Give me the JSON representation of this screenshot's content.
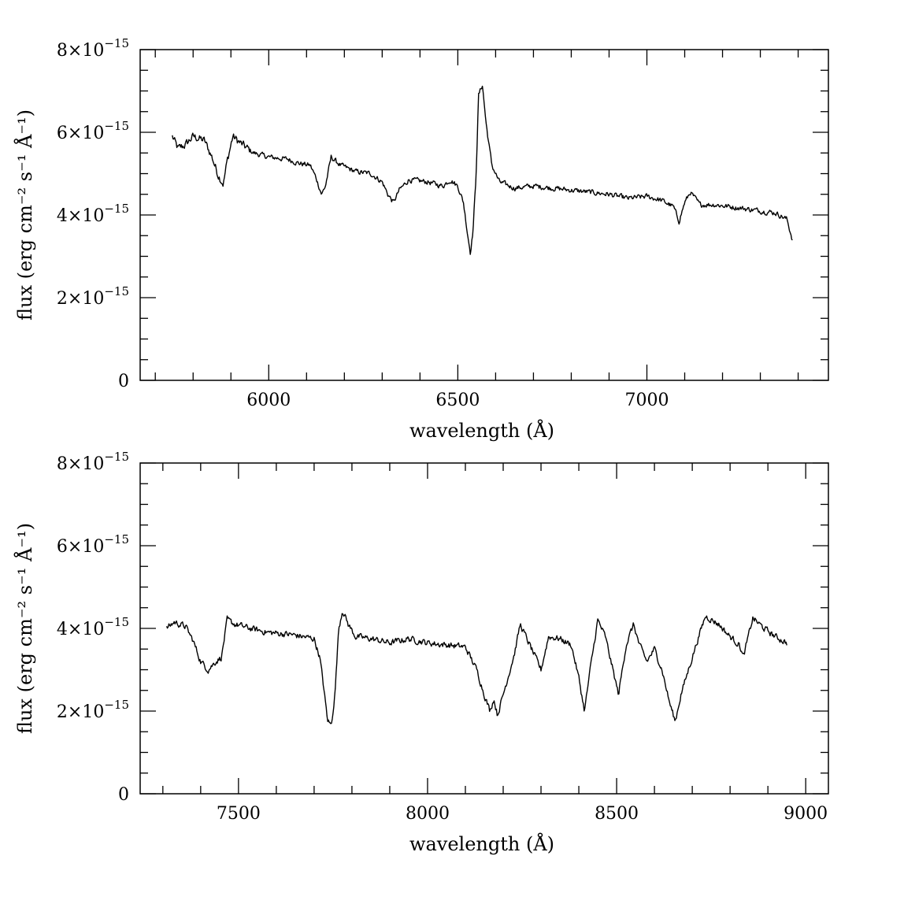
{
  "chart_data": [
    {
      "type": "line",
      "xlabel": "wavelength (Å)",
      "ylabel": "flux (erg cm⁻² s⁻¹ Å⁻¹)",
      "xlim": [
        5660,
        7480
      ],
      "ylim": [
        0,
        8e-15
      ],
      "x_major_ticks": [
        6000,
        6500,
        7000
      ],
      "x_major_tick_labels": [
        "6000",
        "6500",
        "7000"
      ],
      "x_minor_step": 100,
      "y_major_ticks": [
        0,
        2e-15,
        4e-15,
        6e-15,
        8e-15
      ],
      "y_tick_labels": [
        {
          "mantissa": "0",
          "exponent": ""
        },
        {
          "mantissa": "2×10",
          "exponent": "−15"
        },
        {
          "mantissa": "4×10",
          "exponent": "−15"
        },
        {
          "mantissa": "6×10",
          "exponent": "−15"
        },
        {
          "mantissa": "8×10",
          "exponent": "−15"
        }
      ],
      "y_minor_step": 5e-16,
      "grid": false,
      "legend": "none",
      "anchors": [
        [
          5745,
          5.9e-15
        ],
        [
          5760,
          5.6e-15
        ],
        [
          5780,
          5.7e-15
        ],
        [
          5800,
          5.9e-15
        ],
        [
          5830,
          5.8e-15
        ],
        [
          5850,
          5.4e-15
        ],
        [
          5865,
          5e-15
        ],
        [
          5880,
          4.75e-15
        ],
        [
          5890,
          5.3e-15
        ],
        [
          5905,
          5.9e-15
        ],
        [
          5930,
          5.7e-15
        ],
        [
          5960,
          5.5e-15
        ],
        [
          6000,
          5.4e-15
        ],
        [
          6050,
          5.35e-15
        ],
        [
          6080,
          5.25e-15
        ],
        [
          6110,
          5.2e-15
        ],
        [
          6125,
          4.9e-15
        ],
        [
          6140,
          4.5e-15
        ],
        [
          6150,
          4.7e-15
        ],
        [
          6165,
          5.4e-15
        ],
        [
          6190,
          5.2e-15
        ],
        [
          6230,
          5.05e-15
        ],
        [
          6270,
          5e-15
        ],
        [
          6300,
          4.8e-15
        ],
        [
          6315,
          4.5e-15
        ],
        [
          6330,
          4.3e-15
        ],
        [
          6345,
          4.6e-15
        ],
        [
          6370,
          4.85e-15
        ],
        [
          6420,
          4.8e-15
        ],
        [
          6460,
          4.7e-15
        ],
        [
          6480,
          4.85e-15
        ],
        [
          6500,
          4.7e-15
        ],
        [
          6515,
          4.3e-15
        ],
        [
          6525,
          3.6e-15
        ],
        [
          6533,
          3.1e-15
        ],
        [
          6540,
          3.6e-15
        ],
        [
          6548,
          4.9e-15
        ],
        [
          6555,
          6.9e-15
        ],
        [
          6565,
          7.15e-15
        ],
        [
          6575,
          6.2e-15
        ],
        [
          6590,
          5.2e-15
        ],
        [
          6610,
          4.8e-15
        ],
        [
          6650,
          4.65e-15
        ],
        [
          6700,
          4.7e-15
        ],
        [
          6750,
          4.65e-15
        ],
        [
          6800,
          4.6e-15
        ],
        [
          6850,
          4.55e-15
        ],
        [
          6900,
          4.5e-15
        ],
        [
          6950,
          4.4e-15
        ],
        [
          7000,
          4.45e-15
        ],
        [
          7040,
          4.35e-15
        ],
        [
          7070,
          4.2e-15
        ],
        [
          7085,
          3.85e-15
        ],
        [
          7100,
          4.3e-15
        ],
        [
          7115,
          4.55e-15
        ],
        [
          7140,
          4.25e-15
        ],
        [
          7180,
          4.25e-15
        ],
        [
          7220,
          4.2e-15
        ],
        [
          7260,
          4.15e-15
        ],
        [
          7300,
          4.1e-15
        ],
        [
          7340,
          4.05e-15
        ],
        [
          7370,
          3.9e-15
        ],
        [
          7385,
          3.4e-15
        ]
      ]
    },
    {
      "type": "line",
      "xlabel": "wavelength (Å)",
      "ylabel": "flux (erg cm⁻² s⁻¹ Å⁻¹)",
      "xlim": [
        7240,
        9060
      ],
      "ylim": [
        0,
        8e-15
      ],
      "x_major_ticks": [
        7500,
        8000,
        8500,
        9000
      ],
      "x_major_tick_labels": [
        "7500",
        "8000",
        "8500",
        "9000"
      ],
      "x_minor_step": 100,
      "y_major_ticks": [
        0,
        2e-15,
        4e-15,
        6e-15,
        8e-15
      ],
      "y_tick_labels": [
        {
          "mantissa": "0",
          "exponent": ""
        },
        {
          "mantissa": "2×10",
          "exponent": "−15"
        },
        {
          "mantissa": "4×10",
          "exponent": "−15"
        },
        {
          "mantissa": "6×10",
          "exponent": "−15"
        },
        {
          "mantissa": "8×10",
          "exponent": "−15"
        }
      ],
      "y_minor_step": 5e-16,
      "grid": false,
      "legend": "none",
      "anchors": [
        [
          7310,
          4e-15
        ],
        [
          7330,
          4.15e-15
        ],
        [
          7360,
          4.05e-15
        ],
        [
          7380,
          3.7e-15
        ],
        [
          7400,
          3.2e-15
        ],
        [
          7420,
          3e-15
        ],
        [
          7440,
          3.2e-15
        ],
        [
          7455,
          3.3e-15
        ],
        [
          7470,
          4.2e-15
        ],
        [
          7490,
          4.1e-15
        ],
        [
          7530,
          4e-15
        ],
        [
          7580,
          3.9e-15
        ],
        [
          7640,
          3.85e-15
        ],
        [
          7700,
          3.75e-15
        ],
        [
          7715,
          3.3e-15
        ],
        [
          7725,
          2.6e-15
        ],
        [
          7735,
          1.8e-15
        ],
        [
          7745,
          1.65e-15
        ],
        [
          7755,
          2.4e-15
        ],
        [
          7765,
          4e-15
        ],
        [
          7775,
          4.45e-15
        ],
        [
          7790,
          4.1e-15
        ],
        [
          7810,
          3.8e-15
        ],
        [
          7850,
          3.75e-15
        ],
        [
          7900,
          3.65e-15
        ],
        [
          7950,
          3.75e-15
        ],
        [
          8000,
          3.65e-15
        ],
        [
          8050,
          3.6e-15
        ],
        [
          8100,
          3.55e-15
        ],
        [
          8130,
          3e-15
        ],
        [
          8150,
          2.4e-15
        ],
        [
          8165,
          2e-15
        ],
        [
          8175,
          2.3e-15
        ],
        [
          8185,
          1.9e-15
        ],
        [
          8200,
          2.4e-15
        ],
        [
          8230,
          3.4e-15
        ],
        [
          8245,
          4.1e-15
        ],
        [
          8270,
          3.6e-15
        ],
        [
          8300,
          3e-15
        ],
        [
          8320,
          3.8e-15
        ],
        [
          8350,
          3.75e-15
        ],
        [
          8380,
          3.6e-15
        ],
        [
          8400,
          2.8e-15
        ],
        [
          8415,
          2e-15
        ],
        [
          8430,
          3e-15
        ],
        [
          8450,
          4.2e-15
        ],
        [
          8470,
          3.8e-15
        ],
        [
          8490,
          3e-15
        ],
        [
          8505,
          2.4e-15
        ],
        [
          8525,
          3.6e-15
        ],
        [
          8545,
          4.1e-15
        ],
        [
          8560,
          3.6e-15
        ],
        [
          8580,
          3.2e-15
        ],
        [
          8600,
          3.5e-15
        ],
        [
          8620,
          3e-15
        ],
        [
          8640,
          2.2e-15
        ],
        [
          8655,
          1.75e-15
        ],
        [
          8670,
          2.4e-15
        ],
        [
          8690,
          3e-15
        ],
        [
          8710,
          3.6e-15
        ],
        [
          8735,
          4.3e-15
        ],
        [
          8770,
          4.1e-15
        ],
        [
          8800,
          3.8e-15
        ],
        [
          8825,
          3.6e-15
        ],
        [
          8835,
          3.3e-15
        ],
        [
          8860,
          4.25e-15
        ],
        [
          8890,
          4e-15
        ],
        [
          8920,
          3.8e-15
        ],
        [
          8950,
          3.65e-15
        ]
      ]
    }
  ]
}
